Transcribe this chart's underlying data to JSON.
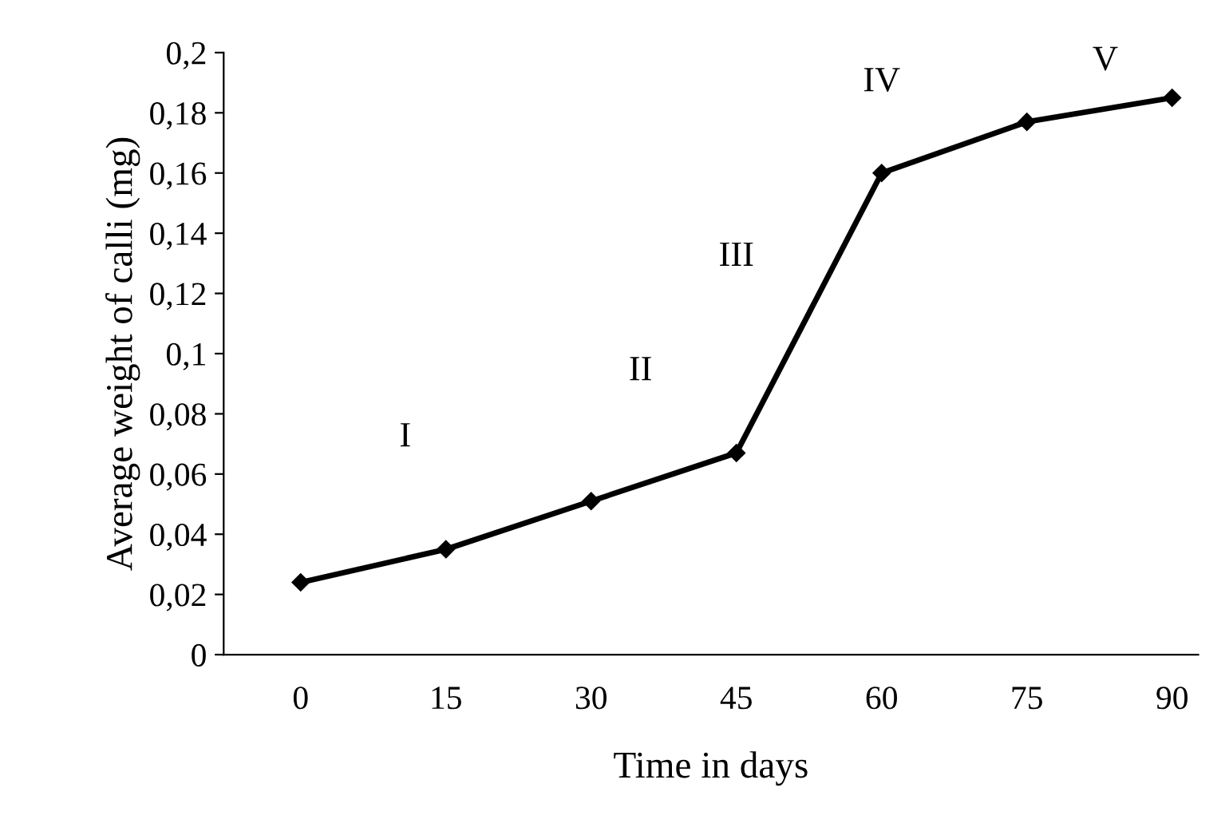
{
  "chart_data": {
    "type": "line",
    "xlabel": "Time in days",
    "ylabel": "Average weight of calli (mg)",
    "categories": [
      "0",
      "15",
      "30",
      "45",
      "60",
      "75",
      "90"
    ],
    "series": [
      {
        "color": "#000000",
        "values": [
          0.024,
          0.035,
          0.051,
          0.067,
          0.16,
          0.177,
          0.185
        ]
      }
    ],
    "ylim": [
      0,
      0.2
    ],
    "yticks": [
      {
        "value": 0,
        "label": "0"
      },
      {
        "value": 0.02,
        "label": "0,02"
      },
      {
        "value": 0.04,
        "label": "0,04"
      },
      {
        "value": 0.06,
        "label": "0,06"
      },
      {
        "value": 0.08,
        "label": "0,08"
      },
      {
        "value": 0.1,
        "label": "0,1"
      },
      {
        "value": 0.12,
        "label": "0,12"
      },
      {
        "value": 0.14,
        "label": "0,14"
      },
      {
        "value": 0.16,
        "label": "0,16"
      },
      {
        "value": 0.18,
        "label": "0,18"
      },
      {
        "value": 0.2,
        "label": "0,2"
      }
    ],
    "annotations": [
      "I",
      "II",
      "III",
      "IV",
      "V"
    ],
    "marker": "diamond",
    "line_style": "solid",
    "grid": false,
    "legend": false
  }
}
